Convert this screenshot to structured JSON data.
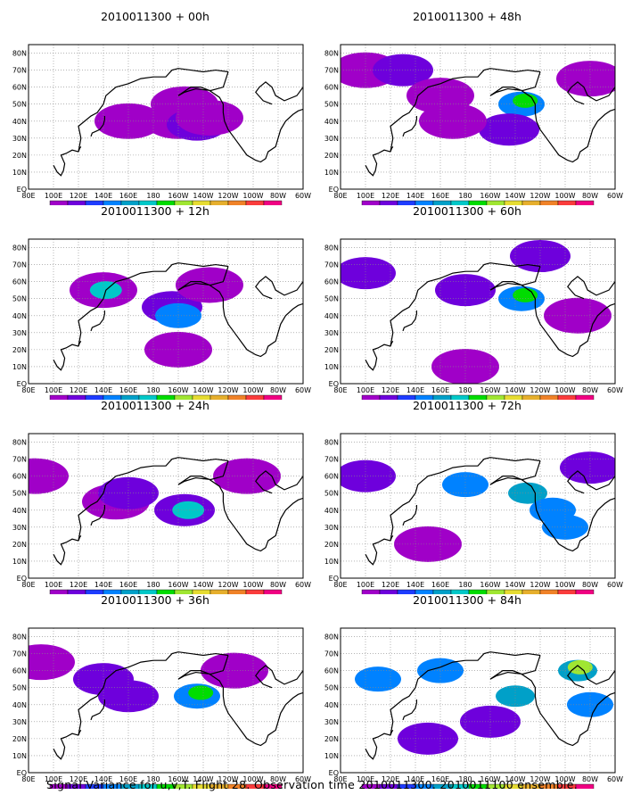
{
  "caption": "Signal Variance for u,v,T. Flight 28. Observation time 2010011300. 2010011100 ensemble.",
  "lat_labels": [
    "80N",
    "70N",
    "60N",
    "50N",
    "40N",
    "30N",
    "20N",
    "10N",
    "EQ"
  ],
  "lon_labels": [
    "80E",
    "100E",
    "120E",
    "140E",
    "160E",
    "180",
    "160W",
    "140W",
    "120W",
    "100W",
    "80W",
    "60W"
  ],
  "colorbar": {
    "levels": [
      "1.6",
      "2.2",
      "3.1",
      "4",
      "5.1",
      "6.3",
      "7.5",
      "9",
      "11",
      "14",
      "21",
      "29",
      "40"
    ],
    "colors": [
      "#a000c8",
      "#6e00dc",
      "#1e3cff",
      "#0082ff",
      "#00a0c8",
      "#00c8c8",
      "#00dc00",
      "#a0e632",
      "#e6dc32",
      "#e6af2d",
      "#f08228",
      "#fa3c3c",
      "#f00082"
    ]
  },
  "chart_data": [
    {
      "type": "heatmap",
      "title": "2010011300 + 00h",
      "cells": [
        {
          "lat": 50,
          "lon": 205,
          "level": "1.6"
        },
        {
          "lat": 40,
          "lon": 200,
          "level": "1.6"
        },
        {
          "lat": 38,
          "lon": 215,
          "level": "2.2"
        },
        {
          "lat": 40,
          "lon": 160,
          "level": "1.6"
        },
        {
          "lat": 42,
          "lon": 225,
          "level": "1.6"
        }
      ]
    },
    {
      "type": "heatmap",
      "title": "2010011300 + 48h",
      "cells": [
        {
          "lat": 70,
          "lon": 100,
          "level": "1.6"
        },
        {
          "lat": 70,
          "lon": 130,
          "level": "2.2"
        },
        {
          "lat": 55,
          "lon": 160,
          "level": "1.6"
        },
        {
          "lat": 65,
          "lon": 280,
          "level": "1.6"
        },
        {
          "lat": 50,
          "lon": 225,
          "level": "4"
        },
        {
          "lat": 52,
          "lon": 228,
          "level": "7.5"
        },
        {
          "lat": 35,
          "lon": 215,
          "level": "2.2"
        },
        {
          "lat": 40,
          "lon": 170,
          "level": "1.6"
        }
      ]
    },
    {
      "type": "heatmap",
      "title": "2010011300 + 12h",
      "cells": [
        {
          "lat": 55,
          "lon": 140,
          "level": "1.6"
        },
        {
          "lat": 55,
          "lon": 142,
          "level": "6.3"
        },
        {
          "lat": 45,
          "lon": 195,
          "level": "2.2"
        },
        {
          "lat": 40,
          "lon": 200,
          "level": "4"
        },
        {
          "lat": 58,
          "lon": 225,
          "level": "1.6"
        },
        {
          "lat": 20,
          "lon": 200,
          "level": "1.6"
        }
      ]
    },
    {
      "type": "heatmap",
      "title": "2010011300 + 60h",
      "cells": [
        {
          "lat": 65,
          "lon": 100,
          "level": "2.2"
        },
        {
          "lat": 55,
          "lon": 180,
          "level": "2.2"
        },
        {
          "lat": 50,
          "lon": 225,
          "level": "4"
        },
        {
          "lat": 52,
          "lon": 228,
          "level": "7.5"
        },
        {
          "lat": 75,
          "lon": 240,
          "level": "2.2"
        },
        {
          "lat": 10,
          "lon": 180,
          "level": "1.6"
        },
        {
          "lat": 40,
          "lon": 270,
          "level": "1.6"
        }
      ]
    },
    {
      "type": "heatmap",
      "title": "2010011300 + 24h",
      "cells": [
        {
          "lat": 60,
          "lon": 85,
          "level": "1.6"
        },
        {
          "lat": 45,
          "lon": 150,
          "level": "1.6"
        },
        {
          "lat": 50,
          "lon": 160,
          "level": "2.2"
        },
        {
          "lat": 40,
          "lon": 205,
          "level": "2.2"
        },
        {
          "lat": 40,
          "lon": 208,
          "level": "6.3"
        },
        {
          "lat": 60,
          "lon": 255,
          "level": "1.6"
        }
      ]
    },
    {
      "type": "heatmap",
      "title": "2010011300 + 72h",
      "cells": [
        {
          "lat": 60,
          "lon": 100,
          "level": "2.2"
        },
        {
          "lat": 55,
          "lon": 180,
          "level": "4"
        },
        {
          "lat": 50,
          "lon": 230,
          "level": "5.1"
        },
        {
          "lat": 40,
          "lon": 250,
          "level": "4"
        },
        {
          "lat": 65,
          "lon": 280,
          "level": "2.2"
        },
        {
          "lat": 20,
          "lon": 150,
          "level": "1.6"
        },
        {
          "lat": 30,
          "lon": 260,
          "level": "4"
        }
      ]
    },
    {
      "type": "heatmap",
      "title": "2010011300 + 36h",
      "cells": [
        {
          "lat": 65,
          "lon": 90,
          "level": "1.6"
        },
        {
          "lat": 55,
          "lon": 140,
          "level": "2.2"
        },
        {
          "lat": 45,
          "lon": 160,
          "level": "2.2"
        },
        {
          "lat": 45,
          "lon": 215,
          "level": "4"
        },
        {
          "lat": 47,
          "lon": 218,
          "level": "7.5"
        },
        {
          "lat": 60,
          "lon": 245,
          "level": "1.6"
        }
      ]
    },
    {
      "type": "heatmap",
      "title": "2010011300 + 84h",
      "cells": [
        {
          "lat": 55,
          "lon": 110,
          "level": "4"
        },
        {
          "lat": 60,
          "lon": 160,
          "level": "4"
        },
        {
          "lat": 45,
          "lon": 220,
          "level": "5.1"
        },
        {
          "lat": 60,
          "lon": 270,
          "level": "5.1"
        },
        {
          "lat": 62,
          "lon": 272,
          "level": "9"
        },
        {
          "lat": 30,
          "lon": 200,
          "level": "2.2"
        },
        {
          "lat": 20,
          "lon": 150,
          "level": "2.2"
        },
        {
          "lat": 40,
          "lon": 280,
          "level": "4"
        }
      ]
    }
  ]
}
